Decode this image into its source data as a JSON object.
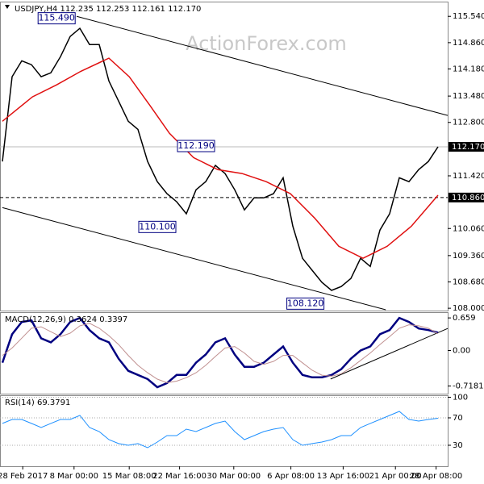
{
  "chart_data": [
    {
      "type": "line",
      "title": "USDJPY,H4  112.235 112.253 112.161 112.170",
      "watermark": "ActionForex.com",
      "x": [
        0,
        1,
        2,
        3,
        4,
        5,
        6,
        7,
        8,
        9,
        10,
        11,
        12,
        13,
        14,
        15,
        16,
        17,
        18,
        19,
        20,
        21,
        22,
        23,
        24,
        25,
        26,
        27,
        28,
        29,
        30,
        31,
        32,
        33,
        34,
        35,
        36,
        37,
        38,
        39,
        40,
        41,
        42,
        43,
        44,
        45
      ],
      "xlim": [
        -0.25,
        46
      ],
      "ylim": [
        107.94,
        115.92
      ],
      "yticks": [
        {
          "value": 115.54,
          "label": "115.540"
        },
        {
          "value": 114.86,
          "label": "114.860"
        },
        {
          "value": 114.18,
          "label": "114.180"
        },
        {
          "value": 113.48,
          "label": "113.480"
        },
        {
          "value": 112.8,
          "label": "112.800"
        },
        {
          "value": 111.42,
          "label": "111.420"
        },
        {
          "value": 110.06,
          "label": "110.060"
        },
        {
          "value": 109.36,
          "label": "109.360"
        },
        {
          "value": 108.68,
          "label": "108.680"
        },
        {
          "value": 108.0,
          "label": "108.000"
        }
      ],
      "hlines": [
        {
          "value": 112.17,
          "label": "112.170",
          "style": "solid"
        },
        {
          "value": 110.86,
          "label": "110.860",
          "style": "dashed"
        }
      ],
      "series": [
        {
          "color": "#000000",
          "values": [
            111.79,
            113.98,
            114.39,
            114.29,
            113.98,
            114.08,
            114.5,
            115.02,
            115.23,
            114.81,
            114.81,
            113.87,
            113.35,
            112.83,
            112.62,
            111.79,
            111.27,
            110.96,
            110.75,
            110.44,
            111.06,
            111.27,
            111.69,
            111.48,
            111.06,
            110.54,
            110.85,
            110.85,
            110.96,
            111.37,
            110.12,
            109.29,
            108.98,
            108.67,
            108.46,
            108.56,
            108.77,
            109.29,
            109.08,
            110.02,
            110.44,
            111.37,
            111.27,
            111.58,
            111.79,
            112.17
          ]
        },
        {
          "color": "#e01010",
          "x": [
            0,
            3.1,
            5.6,
            8.1,
            11,
            13.1,
            15.2,
            17.25,
            19.75,
            22.25,
            24.75,
            27.25,
            29.75,
            32.25,
            34.75,
            37.25,
            39.75,
            42.25,
            45
          ],
          "values": [
            112.83,
            113.46,
            113.77,
            114.12,
            114.46,
            113.98,
            113.25,
            112.52,
            111.89,
            111.58,
            111.48,
            111.27,
            110.96,
            110.33,
            109.6,
            109.29,
            109.6,
            110.12,
            110.92
          ]
        }
      ],
      "annotations": [
        {
          "label": "115.490",
          "value": 115.49,
          "x": 5.6
        },
        {
          "label": "112.190",
          "value": 112.19,
          "x": 20
        },
        {
          "label": "110.100",
          "value": 110.1,
          "x": 16
        },
        {
          "label": "108.120",
          "value": 108.12,
          "x": 31.3
        }
      ],
      "trendlines": [
        {
          "x": [
            7.67,
            46
          ],
          "y": [
            115.54,
            112.98
          ]
        },
        {
          "x": [
            0,
            39.6
          ],
          "y": [
            110.6,
            107.96
          ]
        }
      ]
    },
    {
      "type": "line",
      "title": "MACD(12,26,9) 0.3624 0.3397",
      "x": [
        0,
        1,
        2,
        3,
        4,
        5,
        6,
        7,
        8,
        9,
        10,
        11,
        12,
        13,
        14,
        15,
        16,
        17,
        18,
        19,
        20,
        21,
        22,
        23,
        24,
        25,
        26,
        27,
        28,
        29,
        30,
        31,
        32,
        33,
        34,
        35,
        36,
        37,
        38,
        39,
        40,
        41,
        42,
        43,
        44,
        45
      ],
      "xlim": [
        -0.25,
        46
      ],
      "ylim": [
        -0.873,
        0.775
      ],
      "yticks": [
        0.659,
        {
          "value": 0,
          "label": "0.00"
        },
        -0.7181
      ],
      "series": [
        {
          "color": "#000080",
          "width": 2.5,
          "values": [
            -0.247,
            0.33,
            0.577,
            0.61,
            0.247,
            0.165,
            0.33,
            0.577,
            0.659,
            0.412,
            0.247,
            0.165,
            -0.165,
            -0.412,
            -0.494,
            -0.577,
            -0.742,
            -0.659,
            -0.494,
            -0.494,
            -0.247,
            -0.082,
            0.165,
            0.247,
            -0.082,
            -0.33,
            -0.33,
            -0.247,
            -0.082,
            0.082,
            -0.247,
            -0.494,
            -0.544,
            -0.544,
            -0.494,
            -0.379,
            -0.165,
            0,
            0.082,
            0.33,
            0.412,
            0.659,
            0.577,
            0.445,
            0.412,
            0.362
          ]
        },
        {
          "color": "#c09090",
          "width": 1,
          "values": [
            -0.1,
            0.05,
            0.25,
            0.45,
            0.48,
            0.38,
            0.28,
            0.35,
            0.5,
            0.55,
            0.45,
            0.3,
            0.12,
            -0.1,
            -0.3,
            -0.45,
            -0.58,
            -0.65,
            -0.62,
            -0.55,
            -0.45,
            -0.3,
            -0.12,
            0.05,
            0.08,
            -0.05,
            -0.22,
            -0.28,
            -0.22,
            -0.1,
            -0.1,
            -0.25,
            -0.4,
            -0.5,
            -0.52,
            -0.47,
            -0.35,
            -0.2,
            -0.05,
            0.12,
            0.28,
            0.45,
            0.52,
            0.5,
            0.45,
            0.34
          ]
        }
      ],
      "trendlines": [
        {
          "x": [
            33.9,
            46
          ],
          "y": [
            -0.577,
            0.445
          ]
        }
      ]
    },
    {
      "type": "line",
      "title": "RSI(14) 69.3791",
      "x": [
        0,
        1,
        2,
        3,
        4,
        5,
        6,
        7,
        8,
        9,
        10,
        11,
        12,
        13,
        14,
        15,
        16,
        17,
        18,
        19,
        20,
        21,
        22,
        23,
        24,
        25,
        26,
        27,
        28,
        29,
        30,
        31,
        32,
        33,
        34,
        35,
        36,
        37,
        38,
        39,
        40,
        41,
        42,
        43,
        44,
        45
      ],
      "xlim": [
        -0.25,
        46
      ],
      "ylim": [
        -0.6,
        102.9
      ],
      "yticks": [
        100,
        70,
        30
      ],
      "grid": true,
      "xticks": [
        {
          "value": 2.1,
          "label": "28 Feb 2017"
        },
        {
          "value": 7.4,
          "label": "8 Mar 00:00"
        },
        {
          "value": 13.1,
          "label": "15 Mar 08:00"
        },
        {
          "value": 18.3,
          "label": "22 Mar 16:00"
        },
        {
          "value": 23.9,
          "label": "30 Mar 00:00"
        },
        {
          "value": 29.8,
          "label": "6 Apr 08:00"
        },
        {
          "value": 35.2,
          "label": "13 Apr 16:00"
        },
        {
          "value": 40.6,
          "label": "21 Apr 00:00"
        },
        {
          "value": 44.8,
          "label": "28 Apr 08:00"
        }
      ],
      "series": [
        {
          "color": "#1e90ff",
          "width": 1,
          "values": [
            61.8,
            67.6,
            67.6,
            61.8,
            55.9,
            61.8,
            67.6,
            67.6,
            73.5,
            55.9,
            50,
            38.2,
            32.4,
            30,
            32.4,
            26.5,
            34.7,
            44.1,
            44.1,
            53.5,
            50,
            55.9,
            61.8,
            65.3,
            50,
            38.2,
            44.1,
            50,
            53.5,
            55.9,
            38.2,
            30,
            32.4,
            34.7,
            38.2,
            44.1,
            44.1,
            55.9,
            61.8,
            67.6,
            73.5,
            79.4,
            67.6,
            65.3,
            67.6,
            69.4
          ]
        }
      ]
    }
  ]
}
